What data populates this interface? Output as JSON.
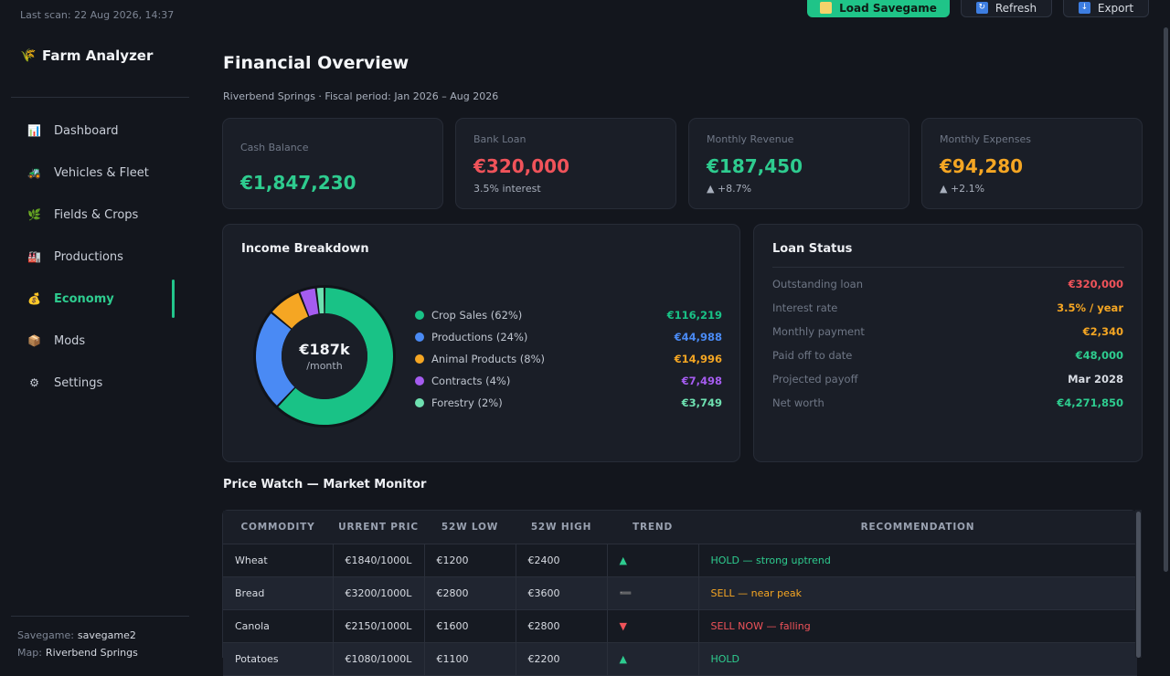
{
  "sidebar": {
    "last_scan": "Last scan: 22 Aug 2026, 14:37",
    "brand": "Farm Analyzer",
    "items": [
      {
        "label": "Dashboard",
        "icon": "bar-chart-icon"
      },
      {
        "label": "Vehicles & Fleet",
        "icon": "tractor-icon"
      },
      {
        "label": "Fields & Crops",
        "icon": "crop-icon"
      },
      {
        "label": "Productions",
        "icon": "factory-icon"
      },
      {
        "label": "Economy",
        "icon": "money-bag-icon"
      },
      {
        "label": "Mods",
        "icon": "box-icon"
      },
      {
        "label": "Settings",
        "icon": "gear-icon"
      }
    ],
    "savegame_label": "Savegame:",
    "savegame_value": "savegame2",
    "map_label": "Map:",
    "map_value": "Riverbend Springs"
  },
  "toolbar": {
    "load_label": "Load Savegame",
    "refresh_label": "Refresh",
    "export_label": "Export"
  },
  "header": {
    "title": "Financial Overview",
    "subtitle": "Riverbend Springs  ·  Fiscal period: Jan 2026 – Aug 2026"
  },
  "kpis": {
    "cash": {
      "label": "Cash Balance",
      "value": "€1,847,230",
      "color": "#2ecc8f"
    },
    "loan": {
      "label": "Bank Loan",
      "value": "€320,000",
      "sub": "3.5% interest",
      "color": "#f0535a"
    },
    "revenue": {
      "label": "Monthly Revenue",
      "value": "€187,450",
      "sub": "▲ +8.7%",
      "color": "#2ecc8f"
    },
    "expenses": {
      "label": "Monthly Expenses",
      "value": "€94,280",
      "sub": "▲ +2.1%",
      "color": "#f5a623"
    }
  },
  "income": {
    "title": "Income Breakdown",
    "center_value": "€187k",
    "center_sub": "/month"
  },
  "chart_data": {
    "type": "pie",
    "categories": [
      "Crop Sales (62%)",
      "Productions (24%)",
      "Animal Products (8%)",
      "Contracts (4%)",
      "Forestry (2%)"
    ],
    "values": [
      62,
      24,
      8,
      4,
      2
    ],
    "amounts": [
      "€116,219",
      "€44,988",
      "€14,996",
      "€7,498",
      "€3,749"
    ],
    "colors": [
      "#19c286",
      "#4a8af4",
      "#f5a623",
      "#a55cf0",
      "#6ee0b0"
    ]
  },
  "loan": {
    "title": "Loan Status",
    "rows": [
      {
        "key": "Outstanding loan",
        "value": "€320,000",
        "color": "#f0535a"
      },
      {
        "key": "Interest rate",
        "value": "3.5% / year",
        "color": "#f5a623"
      },
      {
        "key": "Monthly payment",
        "value": "€2,340",
        "color": "#f5a623"
      },
      {
        "key": "Paid off to date",
        "value": "€48,000",
        "color": "#2ecc8f"
      },
      {
        "key": "Projected payoff",
        "value": "Mar 2028",
        "color": "#d8dce3"
      },
      {
        "key": "Net worth",
        "value": "€4,271,850",
        "color": "#2ecc8f"
      }
    ]
  },
  "market": {
    "title": "Price Watch — Market Monitor",
    "columns": [
      "COMMODITY",
      "URRENT PRIC",
      "52W LOW",
      "52W HIGH",
      "TREND",
      "RECOMMENDATION"
    ],
    "rows": [
      {
        "commodity": "Wheat",
        "current": "€1840/1000L",
        "low": "€1200",
        "high": "€2400",
        "trend": "▲",
        "trend_color": "#2ecc8f",
        "rec": "HOLD — strong uptrend",
        "rec_color": "#2ecc8f"
      },
      {
        "commodity": "Bread",
        "current": "€3200/1000L",
        "low": "€2800",
        "high": "€3600",
        "trend": "➖",
        "trend_color": "#f5a623",
        "rec": "SELL — near peak",
        "rec_color": "#f5a623"
      },
      {
        "commodity": "Canola",
        "current": "€2150/1000L",
        "low": "€1600",
        "high": "€2800",
        "trend": "▼",
        "trend_color": "#f0535a",
        "rec": "SELL NOW — falling",
        "rec_color": "#f0535a"
      },
      {
        "commodity": "Potatoes",
        "current": "€1080/1000L",
        "low": "€1100",
        "high": "€2200",
        "trend": "▲",
        "trend_color": "#2ecc8f",
        "rec": "HOLD",
        "rec_color": "#2ecc8f"
      }
    ]
  }
}
